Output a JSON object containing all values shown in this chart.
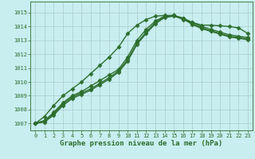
{
  "title": "Graphe pression niveau de la mer (hPa)",
  "background_color": "#c8eef0",
  "grid_color": "#aacccc",
  "line_color": "#2d6e2d",
  "xlim": [
    -0.5,
    23.5
  ],
  "ylim": [
    1006.5,
    1015.8
  ],
  "yticks": [
    1007,
    1008,
    1009,
    1010,
    1011,
    1012,
    1013,
    1014,
    1015
  ],
  "xticks": [
    0,
    1,
    2,
    3,
    4,
    5,
    6,
    7,
    8,
    9,
    10,
    11,
    12,
    13,
    14,
    15,
    16,
    17,
    18,
    19,
    20,
    21,
    22,
    23
  ],
  "series": [
    {
      "x": [
        0,
        1,
        2,
        3,
        4,
        5,
        6,
        7,
        8,
        9,
        10,
        11,
        12,
        13,
        14,
        15,
        16,
        17,
        18,
        19,
        20,
        21,
        22,
        23
      ],
      "y": [
        1007.0,
        1007.5,
        1008.3,
        1009.0,
        1009.5,
        1010.0,
        1010.6,
        1011.2,
        1011.8,
        1012.5,
        1013.5,
        1014.1,
        1014.5,
        1014.75,
        1014.8,
        1014.8,
        1014.5,
        1014.3,
        1014.1,
        1014.1,
        1014.05,
        1014.0,
        1013.9,
        1013.5
      ],
      "marker": "D",
      "markersize": 2.5,
      "linewidth": 1.0
    },
    {
      "x": [
        0,
        1,
        2,
        3,
        4,
        5,
        6,
        7,
        8,
        9,
        10,
        11,
        12,
        13,
        14,
        15,
        16,
        17,
        18,
        19,
        20,
        21,
        22,
        23
      ],
      "y": [
        1007.0,
        1007.2,
        1007.8,
        1008.5,
        1009.0,
        1009.3,
        1009.7,
        1010.1,
        1010.5,
        1010.9,
        1011.8,
        1013.0,
        1013.8,
        1014.4,
        1014.75,
        1014.8,
        1014.6,
        1014.3,
        1014.0,
        1013.8,
        1013.6,
        1013.4,
        1013.3,
        1013.2
      ],
      "marker": "D",
      "markersize": 2.5,
      "linewidth": 1.0
    },
    {
      "x": [
        0,
        1,
        2,
        3,
        4,
        5,
        6,
        7,
        8,
        9,
        10,
        11,
        12,
        13,
        14,
        15,
        16,
        17,
        18,
        19,
        20,
        21,
        22,
        23
      ],
      "y": [
        1007.0,
        1007.2,
        1007.7,
        1008.4,
        1008.9,
        1009.2,
        1009.5,
        1009.9,
        1010.3,
        1010.8,
        1011.6,
        1012.8,
        1013.6,
        1014.3,
        1014.7,
        1014.8,
        1014.6,
        1014.2,
        1013.9,
        1013.7,
        1013.5,
        1013.3,
        1013.2,
        1013.1
      ],
      "marker": "D",
      "markersize": 2.5,
      "linewidth": 1.0
    },
    {
      "x": [
        0,
        1,
        2,
        3,
        4,
        5,
        6,
        7,
        8,
        9,
        10,
        11,
        12,
        13,
        14,
        15,
        16,
        17,
        18,
        19,
        20,
        21,
        22,
        23
      ],
      "y": [
        1007.0,
        1007.1,
        1007.6,
        1008.3,
        1008.8,
        1009.1,
        1009.4,
        1009.8,
        1010.2,
        1010.7,
        1011.5,
        1012.7,
        1013.5,
        1014.2,
        1014.65,
        1014.75,
        1014.55,
        1014.15,
        1013.85,
        1013.65,
        1013.45,
        1013.25,
        1013.15,
        1013.05
      ],
      "marker": "D",
      "markersize": 2.5,
      "linewidth": 1.0
    }
  ],
  "title_fontsize": 6.5,
  "tick_fontsize": 5.0,
  "title_color": "#2d6e2d",
  "tick_color": "#2d6e2d",
  "axis_color": "#2d6e2d",
  "fig_width": 3.2,
  "fig_height": 2.0,
  "dpi": 100
}
